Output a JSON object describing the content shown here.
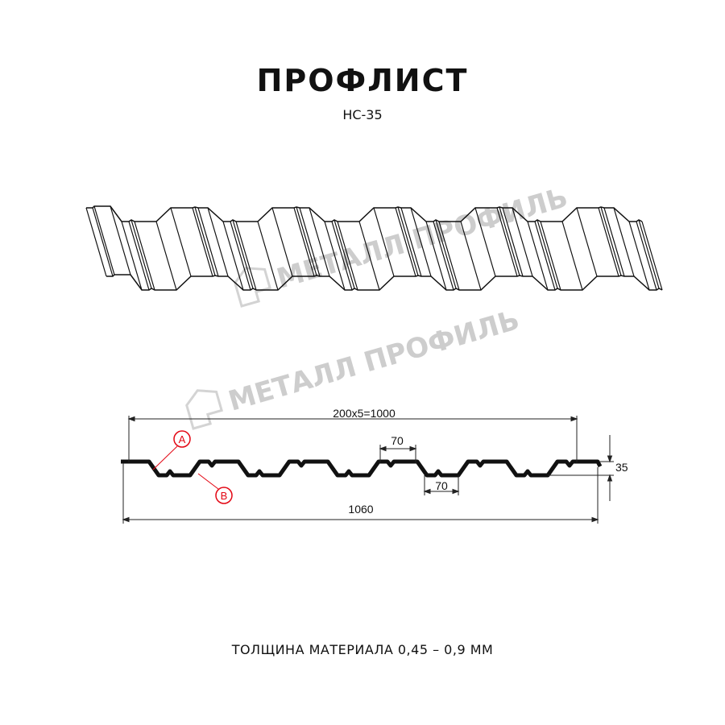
{
  "title": "ПРОФЛИСТ",
  "subtitle": "НС-35",
  "footer": "ТОЛЩИНА МАТЕРИАЛА 0,45 – 0,9 ММ",
  "watermark": "МЕТАЛЛ ПРОФИЛЬ",
  "section": {
    "pitch_label": "200x5=1000",
    "total_width_label": "1060",
    "height_label": "35",
    "top_width_label": "70",
    "bottom_width_label": "70",
    "marker_a": "A",
    "marker_b": "B"
  },
  "colors": {
    "line": "#111111",
    "marker": "#e30613",
    "watermark": "#c8c8c8"
  }
}
